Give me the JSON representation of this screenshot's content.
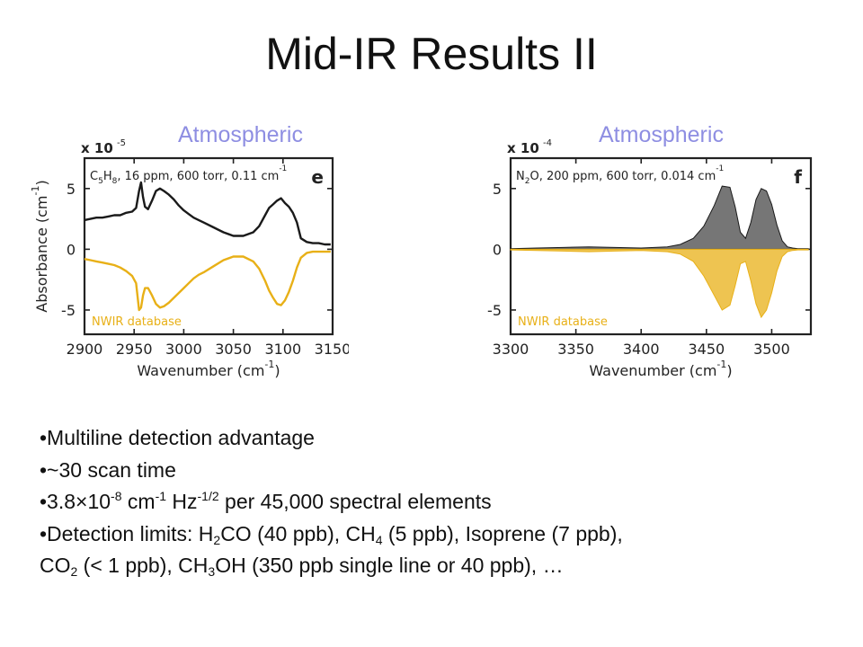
{
  "title": "Mid-IR Results II",
  "overlay_labels": [
    "Atmospheric",
    "Atmospheric"
  ],
  "colors": {
    "measured": "#1a1a1a",
    "database": "#E8B017",
    "overlay_label": "#8E8EE2",
    "axis": "#222222"
  },
  "chart_data": [
    {
      "type": "line",
      "panel_letter": "e",
      "annotation": "C5H8, 16 ppm, 600 torr, 0.11 cm-1",
      "annotation_parts": {
        "species": "C",
        "sub1": "5",
        "mid": "H",
        "sub2": "8",
        "rest": ", 16 ppm, 600 torr, 0.11 cm",
        "sup": "-1"
      },
      "database_label": "NWIR database",
      "exponent_label": "x 10",
      "exponent_power": "-5",
      "xlabel": "Wavenumber (cm",
      "xlabel_sup": "-1",
      "xlabel_end": ")",
      "ylabel": "Absorbance (cm",
      "ylabel_sup": "-1",
      "ylabel_end": ")",
      "xlim": [
        2900,
        3150
      ],
      "ylim": [
        -7,
        7.5
      ],
      "x_ticks": [
        2900,
        2950,
        3000,
        3050,
        3100,
        3150
      ],
      "y_ticks": [
        -5,
        0,
        5
      ],
      "legend": "bottom-left",
      "series": [
        {
          "role": "measured",
          "x": [
            2900,
            2906,
            2912,
            2918,
            2924,
            2930,
            2936,
            2942,
            2948,
            2952,
            2955,
            2957,
            2959,
            2961,
            2964,
            2968,
            2972,
            2976,
            2980,
            2985,
            2990,
            2995,
            3000,
            3005,
            3010,
            3015,
            3020,
            3030,
            3040,
            3050,
            3060,
            3070,
            3076,
            3082,
            3086,
            3090,
            3094,
            3098,
            3102,
            3106,
            3110,
            3114,
            3118,
            3124,
            3130,
            3136,
            3142,
            3148
          ],
          "values": [
            2.4,
            2.5,
            2.6,
            2.6,
            2.7,
            2.8,
            2.8,
            3.0,
            3.1,
            3.4,
            4.8,
            5.5,
            4.3,
            3.5,
            3.3,
            4.0,
            4.8,
            5.0,
            4.8,
            4.5,
            4.1,
            3.6,
            3.2,
            2.9,
            2.6,
            2.4,
            2.2,
            1.8,
            1.4,
            1.1,
            1.1,
            1.4,
            1.9,
            2.8,
            3.4,
            3.7,
            4.0,
            4.2,
            3.8,
            3.5,
            3.0,
            2.2,
            0.9,
            0.6,
            0.5,
            0.5,
            0.4,
            0.4
          ]
        },
        {
          "role": "database",
          "x": [
            2900,
            2906,
            2912,
            2918,
            2924,
            2930,
            2936,
            2942,
            2948,
            2952,
            2955,
            2957,
            2959,
            2961,
            2964,
            2968,
            2972,
            2976,
            2980,
            2985,
            2990,
            2995,
            3000,
            3005,
            3010,
            3015,
            3020,
            3030,
            3040,
            3050,
            3060,
            3070,
            3076,
            3082,
            3086,
            3090,
            3094,
            3098,
            3102,
            3106,
            3110,
            3114,
            3118,
            3124,
            3130,
            3136,
            3142,
            3148
          ],
          "values": [
            -0.8,
            -0.9,
            -1.0,
            -1.1,
            -1.2,
            -1.3,
            -1.5,
            -1.8,
            -2.2,
            -2.8,
            -5.0,
            -4.8,
            -3.8,
            -3.2,
            -3.2,
            -3.8,
            -4.5,
            -4.8,
            -4.7,
            -4.4,
            -4.0,
            -3.6,
            -3.2,
            -2.8,
            -2.4,
            -2.1,
            -1.9,
            -1.4,
            -0.9,
            -0.6,
            -0.6,
            -1.0,
            -1.6,
            -2.6,
            -3.4,
            -4.0,
            -4.5,
            -4.6,
            -4.2,
            -3.5,
            -2.6,
            -1.5,
            -0.7,
            -0.3,
            -0.2,
            -0.2,
            -0.2,
            -0.2
          ]
        }
      ]
    },
    {
      "type": "line",
      "panel_letter": "f",
      "annotation": "N2O, 200 ppm, 600 torr, 0.014 cm-1",
      "annotation_parts": {
        "species": "N",
        "sub1": "2",
        "mid": "O",
        "sub2": "",
        "rest": ", 200 ppm, 600 torr, 0.014 cm",
        "sup": "-1"
      },
      "database_label": "NWIR database",
      "exponent_label": "x 10",
      "exponent_power": "-4",
      "xlabel": "Wavenumber (cm",
      "xlabel_sup": "-1",
      "xlabel_end": ")",
      "xlim": [
        3300,
        3530
      ],
      "ylim": [
        -7,
        7.5
      ],
      "x_ticks": [
        3300,
        3350,
        3400,
        3450,
        3500
      ],
      "y_ticks": [
        -5,
        0,
        5
      ],
      "legend": "bottom-left",
      "series": [
        {
          "role": "measured",
          "x": [
            3300,
            3320,
            3340,
            3360,
            3380,
            3400,
            3420,
            3430,
            3440,
            3448,
            3456,
            3462,
            3468,
            3472,
            3476,
            3480,
            3484,
            3488,
            3492,
            3496,
            3500,
            3504,
            3508,
            3512,
            3516,
            3520,
            3528
          ],
          "values": [
            0.05,
            0.1,
            0.15,
            0.2,
            0.15,
            0.1,
            0.2,
            0.4,
            0.9,
            1.9,
            3.6,
            5.2,
            5.1,
            3.5,
            1.4,
            0.9,
            2.2,
            4.1,
            5.0,
            4.8,
            3.7,
            2.0,
            0.7,
            0.2,
            0.1,
            0.05,
            0.05
          ]
        },
        {
          "role": "database",
          "x": [
            3300,
            3320,
            3340,
            3360,
            3380,
            3400,
            3420,
            3430,
            3440,
            3448,
            3456,
            3462,
            3468,
            3472,
            3476,
            3480,
            3484,
            3488,
            3492,
            3496,
            3500,
            3504,
            3508,
            3512,
            3516,
            3520,
            3528
          ],
          "values": [
            -0.05,
            -0.1,
            -0.15,
            -0.2,
            -0.15,
            -0.1,
            -0.2,
            -0.4,
            -1.0,
            -2.2,
            -3.8,
            -5.0,
            -4.6,
            -3.0,
            -1.2,
            -1.0,
            -2.6,
            -4.5,
            -5.6,
            -5.0,
            -3.6,
            -1.8,
            -0.6,
            -0.2,
            -0.1,
            -0.05,
            -0.05
          ]
        }
      ]
    }
  ],
  "bullets": [
    {
      "text": "•Multiline detection advantage"
    },
    {
      "text": "•~30 scan time"
    },
    {
      "parts": [
        {
          "t": "•3.8×10"
        },
        {
          "sup": "-8"
        },
        {
          "t": " cm"
        },
        {
          "sup": "-1"
        },
        {
          "t": " Hz"
        },
        {
          "sup": "-1/2"
        },
        {
          "t": " per 45,000 spectral elements"
        }
      ]
    },
    {
      "parts": [
        {
          "t": "•Detection limits: H"
        },
        {
          "sub": "2"
        },
        {
          "t": "CO (40 ppb), CH"
        },
        {
          "sub": "4"
        },
        {
          "t": " (5 ppb), Isoprene (7 ppb),"
        }
      ]
    },
    {
      "parts": [
        {
          "t": "CO"
        },
        {
          "sub": "2"
        },
        {
          "t": " (< 1 ppb), CH"
        },
        {
          "sub": "3"
        },
        {
          "t": "OH (350 ppb single line or 40 ppb), …"
        }
      ]
    }
  ]
}
